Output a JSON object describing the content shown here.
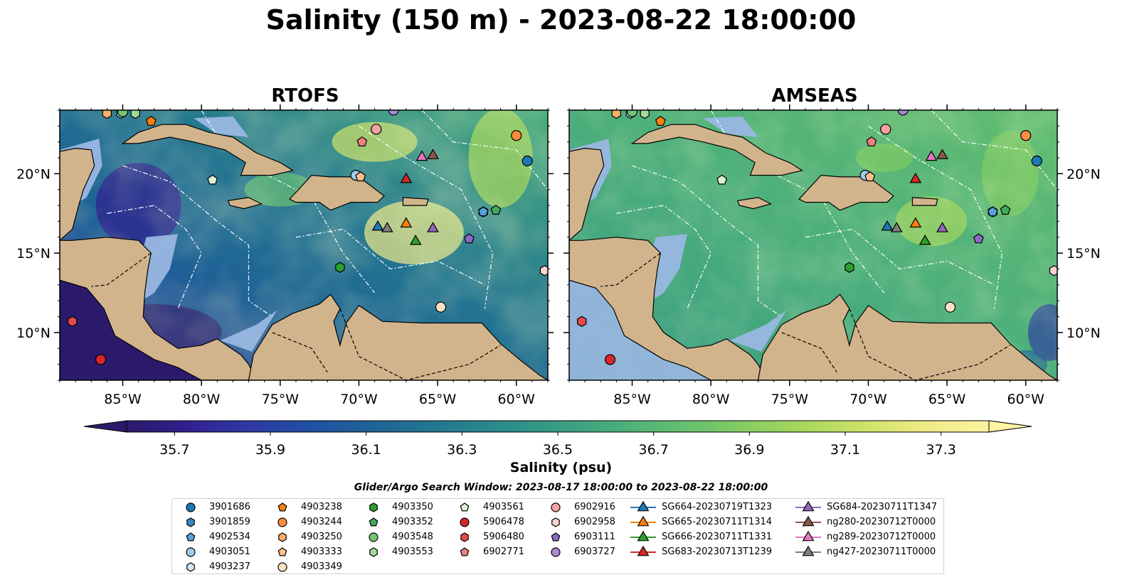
{
  "title": "Salinity (150 m) - 2023-08-22 18:00:00",
  "panels": [
    {
      "title": "RTOFS"
    },
    {
      "title": "AMSEAS"
    }
  ],
  "axes": {
    "lon_ticks": [
      "85°W",
      "80°W",
      "75°W",
      "70°W",
      "65°W",
      "60°W"
    ],
    "lat_ticks": [
      "20°N",
      "15°N",
      "10°N"
    ]
  },
  "colors": {
    "land": "#d2b48c",
    "shallow": "#99b7e2",
    "colormap": [
      "#2b1a6b",
      "#30208f",
      "#2f3aa5",
      "#1f50a2",
      "#1f6396",
      "#23778f",
      "#2a8a8a",
      "#389c84",
      "#4bae7b",
      "#63be70",
      "#84cc63",
      "#a9d85d",
      "#cfe36a",
      "#f0ea86",
      "#fdf3a0"
    ]
  },
  "colorbar": {
    "label": "Salinity (psu)",
    "ticks": [
      "35.7",
      "35.9",
      "36.1",
      "36.3",
      "36.5",
      "36.7",
      "36.9",
      "37.1",
      "37.3"
    ],
    "min": 35.6,
    "max": 37.4
  },
  "legend": {
    "window": "Glider/Argo Search Window: 2023-08-17 18:00:00 to 2023-08-22 18:00:00",
    "entries": [
      {
        "label": "3901686",
        "marker": "circle",
        "color": "#1f77b4",
        "type": "argo"
      },
      {
        "label": "3901859",
        "marker": "hexagon",
        "color": "#3a86c4",
        "type": "argo"
      },
      {
        "label": "4902534",
        "marker": "pentagon",
        "color": "#5aa0d8",
        "type": "argo"
      },
      {
        "label": "4903051",
        "marker": "circle",
        "color": "#9ecae9",
        "type": "argo"
      },
      {
        "label": "4903237",
        "marker": "hexagon",
        "color": "#d0e8f8",
        "type": "argo"
      },
      {
        "label": "4903238",
        "marker": "pentagon",
        "color": "#ff7f0e",
        "type": "argo"
      },
      {
        "label": "4903244",
        "marker": "circle",
        "color": "#fd8d3c",
        "type": "argo"
      },
      {
        "label": "4903250",
        "marker": "hexagon",
        "color": "#fdae6b",
        "type": "argo"
      },
      {
        "label": "4903333",
        "marker": "pentagon",
        "color": "#fdc08a",
        "type": "argo"
      },
      {
        "label": "4903349",
        "marker": "circle",
        "color": "#fee2c4",
        "type": "argo"
      },
      {
        "label": "4903350",
        "marker": "hexagon",
        "color": "#2ca02c",
        "type": "argo"
      },
      {
        "label": "4903352",
        "marker": "pentagon",
        "color": "#41ab5d",
        "type": "argo"
      },
      {
        "label": "4903548",
        "marker": "circle",
        "color": "#74c476",
        "type": "argo"
      },
      {
        "label": "4903553",
        "marker": "hexagon",
        "color": "#a1d99b",
        "type": "argo"
      },
      {
        "label": "4903561",
        "marker": "pentagon",
        "color": "#d9f0d3",
        "type": "argo"
      },
      {
        "label": "5906478",
        "marker": "circle",
        "color": "#d62728",
        "type": "argo"
      },
      {
        "label": "5906480",
        "marker": "hexagon",
        "color": "#e34a4a",
        "type": "argo"
      },
      {
        "label": "6902771",
        "marker": "pentagon",
        "color": "#f08080",
        "type": "argo"
      },
      {
        "label": "6902916",
        "marker": "circle",
        "color": "#f4a3a3",
        "type": "argo"
      },
      {
        "label": "6902958",
        "marker": "hexagon",
        "color": "#fdd0d0",
        "type": "argo"
      },
      {
        "label": "6903111",
        "marker": "pentagon",
        "color": "#8a6cc4",
        "type": "argo"
      },
      {
        "label": "6903727",
        "marker": "circle",
        "color": "#a98bd6",
        "type": "argo"
      },
      {
        "label": "SG664-20230719T1323",
        "marker": "triangle",
        "color": "#1f77b4",
        "type": "glider"
      },
      {
        "label": "SG665-20230711T1314",
        "marker": "triangle",
        "color": "#ff7f0e",
        "type": "glider"
      },
      {
        "label": "SG666-20230711T1331",
        "marker": "triangle",
        "color": "#2ca02c",
        "type": "glider"
      },
      {
        "label": "SG683-20230713T1239",
        "marker": "triangle",
        "color": "#d62728",
        "type": "glider"
      },
      {
        "label": "SG684-20230711T1347",
        "marker": "triangle",
        "color": "#9467bd",
        "type": "glider"
      },
      {
        "label": "ng280-20230712T0000",
        "marker": "triangle",
        "color": "#8c564b",
        "type": "glider"
      },
      {
        "label": "ng289-20230712T0000",
        "marker": "triangle",
        "color": "#e377c2",
        "type": "glider"
      },
      {
        "label": "ng427-20230711T0000",
        "marker": "triangle",
        "color": "#7f7f7f",
        "type": "glider"
      }
    ]
  },
  "map_extent": {
    "lon": [
      -89,
      -58
    ],
    "lat": [
      7,
      24
    ]
  },
  "observations": [
    {
      "id": "3901686",
      "lon": -59.3,
      "lat": 20.8
    },
    {
      "id": "3901859",
      "lon": -62.1,
      "lat": 17.6
    },
    {
      "id": "4902534",
      "lon": -62.1,
      "lat": 17.6
    },
    {
      "id": "4903051",
      "lon": -70.2,
      "lat": 19.9
    },
    {
      "id": "4903237",
      "lon": -85.1,
      "lat": 23.8
    },
    {
      "id": "4903238",
      "lon": -83.2,
      "lat": 23.3
    },
    {
      "id": "4903244",
      "lon": -60.0,
      "lat": 22.4
    },
    {
      "id": "4903250",
      "lon": -86.0,
      "lat": 23.8
    },
    {
      "id": "4903333",
      "lon": -69.9,
      "lat": 19.8
    },
    {
      "id": "4903349",
      "lon": -64.8,
      "lat": 11.6
    },
    {
      "id": "4903350",
      "lon": -71.2,
      "lat": 14.1
    },
    {
      "id": "4903352",
      "lon": -61.3,
      "lat": 17.7
    },
    {
      "id": "4903548",
      "lon": -85.0,
      "lat": 23.9
    },
    {
      "id": "4903553",
      "lon": -84.2,
      "lat": 23.8
    },
    {
      "id": "4903561",
      "lon": -79.3,
      "lat": 19.6
    },
    {
      "id": "5906478",
      "lon": -86.4,
      "lat": 8.3
    },
    {
      "id": "5906480",
      "lon": -88.2,
      "lat": 10.7
    },
    {
      "id": "6902771",
      "lon": -69.8,
      "lat": 22.0
    },
    {
      "id": "6902916",
      "lon": -68.9,
      "lat": 22.8
    },
    {
      "id": "6902958",
      "lon": -58.2,
      "lat": 13.9
    },
    {
      "id": "6903111",
      "lon": -63.0,
      "lat": 15.9
    },
    {
      "id": "6903727",
      "lon": -67.8,
      "lat": 24.0
    },
    {
      "id": "SG664-20230719T1323",
      "lon": -68.8,
      "lat": 16.7
    },
    {
      "id": "SG665-20230711T1314",
      "lon": -67.0,
      "lat": 16.9
    },
    {
      "id": "SG666-20230711T1331",
      "lon": -66.4,
      "lat": 15.8
    },
    {
      "id": "SG683-20230713T1239",
      "lon": -67.0,
      "lat": 19.7
    },
    {
      "id": "SG684-20230711T1347",
      "lon": -65.3,
      "lat": 16.6
    },
    {
      "id": "ng280-20230712T0000",
      "lon": -65.3,
      "lat": 21.2
    },
    {
      "id": "ng289-20230712T0000",
      "lon": -66.0,
      "lat": 21.1
    },
    {
      "id": "ng427-20230711T0000",
      "lon": -68.2,
      "lat": 16.6
    }
  ]
}
